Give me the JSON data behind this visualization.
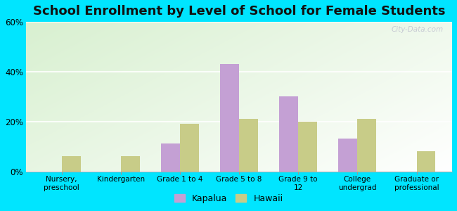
{
  "title": "School Enrollment by Level of School for Female Students",
  "categories": [
    "Nursery,\npreschool",
    "Kindergarten",
    "Grade 1 to 4",
    "Grade 5 to 8",
    "Grade 9 to\n12",
    "College\nundergrad",
    "Graduate or\nprofessional"
  ],
  "kapalua": [
    0,
    0,
    11,
    43,
    30,
    13,
    0
  ],
  "hawaii": [
    6,
    6,
    19,
    21,
    20,
    21,
    8
  ],
  "kapalua_color": "#c4a0d4",
  "hawaii_color": "#c8cc88",
  "background_color": "#00e5ff",
  "title_fontsize": 13,
  "ylim": [
    0,
    60
  ],
  "yticks": [
    0,
    20,
    40,
    60
  ],
  "ytick_labels": [
    "0%",
    "20%",
    "40%",
    "60%"
  ],
  "legend_labels": [
    "Kapalua",
    "Hawaii"
  ],
  "bar_width": 0.32,
  "watermark": "City-Data.com"
}
